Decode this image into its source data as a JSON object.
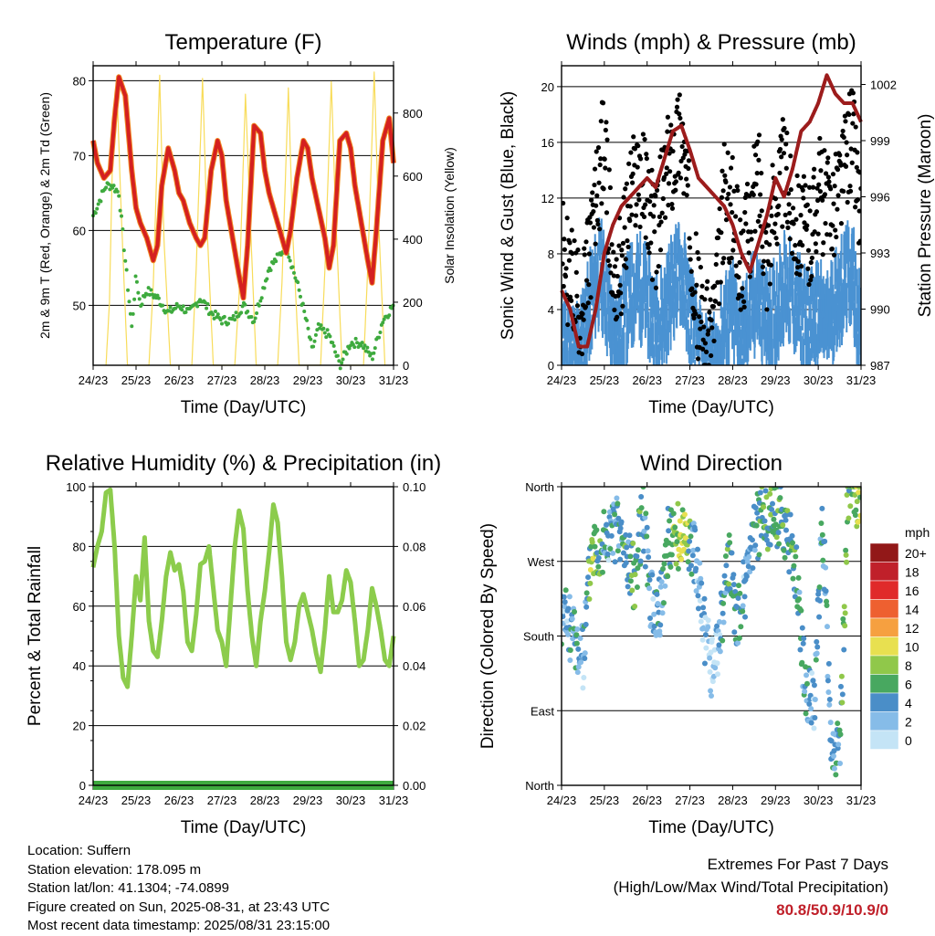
{
  "info": {
    "location": "Location: Suffern",
    "elevation": "Station elevation: 178.095 m",
    "latlon": "Station lat/lon: 41.1304; -74.0899",
    "created": "Figure created on Sun, 2025-08-31, at 23:43 UTC",
    "timestamp": "Most recent data timestamp: 2025/08/31 23:15:00"
  },
  "extremes": {
    "title": "Extremes For Past 7 Days",
    "subtitle": "(High/Low/Max Wind/Total Precipitation)",
    "values": "80.8/50.9/10.9/0"
  },
  "colors": {
    "temp_red": "#d42020",
    "temp_orange": "#f08a24",
    "dewpoint_green": "#3eaa3e",
    "solar_yellow": "#f8dc5a",
    "gust_black": "#000000",
    "wind_blue": "#4a92d2",
    "pressure_maroon": "#9c1c1c",
    "rh_green": "#8ccc4c",
    "precip_green": "#3eaa3e"
  },
  "chart_data": [
    {
      "type": "line",
      "title": "Temperature (F)",
      "xlabel": "Time (Day/UTC)",
      "ylabel": "2m & 9m T (Red, Orange) & 2m Td (Green)",
      "y2label": "Solar Insolation (Yellow)",
      "x_ticks": [
        "24/23",
        "25/23",
        "26/23",
        "27/23",
        "28/23",
        "29/23",
        "30/23",
        "31/23"
      ],
      "xlim": [
        0,
        7
      ],
      "ylim": [
        42,
        82
      ],
      "y_ticks": [
        50,
        60,
        70,
        80
      ],
      "y2lim": [
        0,
        950
      ],
      "y2_ticks": [
        0,
        200,
        400,
        600,
        800
      ],
      "grid": "horizontal",
      "series": [
        {
          "color": "#d42020",
          "x": [
            0,
            0.1,
            0.25,
            0.4,
            0.5,
            0.6,
            0.75,
            0.9,
            1.0,
            1.1,
            1.25,
            1.4,
            1.5,
            1.6,
            1.75,
            1.9,
            2.0,
            2.1,
            2.25,
            2.4,
            2.5,
            2.6,
            2.75,
            2.9,
            3.0,
            3.1,
            3.25,
            3.4,
            3.5,
            3.6,
            3.75,
            3.9,
            4.0,
            4.1,
            4.25,
            4.4,
            4.5,
            4.6,
            4.75,
            4.9,
            5.0,
            5.1,
            5.25,
            5.4,
            5.5,
            5.6,
            5.75,
            5.9,
            6.0,
            6.1,
            6.25,
            6.4,
            6.5,
            6.6,
            6.75,
            6.9,
            7.0
          ],
          "values": [
            72,
            69,
            67,
            68,
            75,
            80.5,
            78,
            68,
            63,
            61,
            59,
            56,
            58,
            66,
            71,
            68,
            65,
            64,
            61,
            59,
            58,
            59,
            68,
            72,
            70,
            64,
            59,
            54,
            51,
            58,
            74,
            73,
            68,
            65,
            62,
            59,
            57,
            60,
            67,
            72,
            71,
            67,
            63,
            59,
            55,
            58,
            72,
            73,
            71,
            66,
            61,
            56,
            53,
            60,
            72,
            75,
            69
          ]
        },
        {
          "color": "#f08a24",
          "x": [
            2.9,
            3.0,
            3.1,
            3.5,
            4.9,
            5.0,
            6.5,
            6.6,
            6.75,
            6.9
          ],
          "values": [
            70,
            71,
            66,
            53,
            70,
            71,
            55,
            61,
            71,
            73
          ]
        },
        {
          "color": "#3eaa3e",
          "x": [
            0,
            0.15,
            0.3,
            0.45,
            0.6,
            0.8,
            0.9,
            1.0,
            1.1,
            1.25,
            1.5,
            1.75,
            2.0,
            2.25,
            2.5,
            2.75,
            3.0,
            3.25,
            3.5,
            3.75,
            4.0,
            4.1,
            4.25,
            4.5,
            4.65,
            4.8,
            5.0,
            5.1,
            5.25,
            5.5,
            5.75,
            6.0,
            6.25,
            6.5,
            6.75,
            7.0
          ],
          "values": [
            62,
            64,
            66,
            66,
            65,
            53,
            47,
            54,
            50,
            52,
            51,
            49,
            50,
            49,
            51,
            49,
            48,
            48,
            50,
            48,
            53,
            55,
            56,
            58,
            55,
            52,
            47,
            44,
            47,
            46,
            42,
            45,
            45,
            43,
            48,
            50
          ]
        },
        {
          "color": "#f8dc5a",
          "axis": "y2",
          "x": [
            0.3,
            0.38,
            0.45,
            0.55,
            0.65,
            0.8,
            1.3,
            1.4,
            1.55,
            1.65,
            1.8,
            2.3,
            2.4,
            2.55,
            2.65,
            2.8,
            3.3,
            3.4,
            3.55,
            3.65,
            3.8,
            4.3,
            4.4,
            4.55,
            4.65,
            4.8,
            5.3,
            5.4,
            5.55,
            5.65,
            5.8,
            6.3,
            6.4,
            6.55,
            6.65,
            6.8
          ],
          "values": [
            0,
            200,
            650,
            900,
            500,
            0,
            0,
            250,
            920,
            400,
            0,
            0,
            300,
            910,
            450,
            0,
            0,
            220,
            860,
            500,
            0,
            0,
            260,
            880,
            420,
            0,
            0,
            300,
            900,
            480,
            0,
            0,
            310,
            930,
            460,
            0
          ]
        }
      ]
    },
    {
      "type": "scatter",
      "title": "Winds (mph) & Pressure (mb)",
      "xlabel": "Time (Day/UTC)",
      "ylabel": "Sonic Wind & Gust (Blue, Black)",
      "y2label": "Station Pressure (Maroon)",
      "x_ticks": [
        "24/23",
        "25/23",
        "26/23",
        "27/23",
        "28/23",
        "29/23",
        "30/23",
        "31/23"
      ],
      "xlim": [
        0,
        7
      ],
      "ylim": [
        0,
        21.5
      ],
      "y_ticks": [
        0,
        4,
        8,
        12,
        16,
        20
      ],
      "y2lim": [
        987,
        1003
      ],
      "y2_ticks": [
        987,
        990,
        993,
        996,
        999,
        1002
      ],
      "grid": "horizontal",
      "series": [
        {
          "name_hidden": "gust",
          "color": "#000000",
          "x": [
            0,
            0.5,
            0.9,
            1.0,
            1.2,
            1.4,
            1.6,
            1.8,
            2.0,
            2.2,
            2.4,
            2.6,
            2.8,
            3.0,
            3.2,
            3.4,
            3.6,
            3.8,
            4.0,
            4.2,
            4.4,
            4.6,
            4.8,
            5.0,
            5.2,
            5.4,
            5.6,
            5.8,
            6.0,
            6.2,
            6.4,
            6.6,
            6.8,
            7.0
          ],
          "values": [
            8,
            4,
            14,
            16,
            6,
            7,
            12,
            14,
            12,
            9,
            13,
            15,
            17,
            10,
            4,
            2,
            4,
            12,
            11,
            7,
            10,
            14,
            8,
            12,
            14,
            11,
            10,
            9,
            13,
            11,
            12,
            14,
            17,
            10
          ]
        },
        {
          "name_hidden": "wind",
          "color": "#4a92d2",
          "x": [
            0,
            0.3,
            0.5,
            0.7,
            0.9,
            1.0,
            1.2,
            1.4,
            1.6,
            1.8,
            2.0,
            2.2,
            2.4,
            2.6,
            2.8,
            3.0,
            3.2,
            3.4,
            3.6,
            3.8,
            4.0,
            4.2,
            4.4,
            4.6,
            4.8,
            5.0,
            5.2,
            5.4,
            5.6,
            5.8,
            6.0,
            6.2,
            6.4,
            6.6,
            6.8,
            7.0
          ],
          "values": [
            3,
            2,
            3,
            6,
            8,
            7,
            3,
            4,
            6,
            7,
            6,
            4,
            5,
            7,
            8,
            5,
            2,
            1,
            1,
            4,
            5,
            3,
            5,
            6,
            4,
            5,
            7,
            6,
            5,
            4,
            5,
            4,
            6,
            7,
            8,
            3
          ]
        },
        {
          "name_hidden": "pressure",
          "color": "#9c1c1c",
          "axis": "y2",
          "x": [
            0,
            0.2,
            0.4,
            0.6,
            0.8,
            1.0,
            1.2,
            1.4,
            1.6,
            1.8,
            2.0,
            2.2,
            2.4,
            2.6,
            2.8,
            3.0,
            3.2,
            3.4,
            3.6,
            3.8,
            4.0,
            4.2,
            4.4,
            4.6,
            4.8,
            5.0,
            5.2,
            5.4,
            5.6,
            5.8,
            6.0,
            6.2,
            6.4,
            6.6,
            6.8,
            7.0
          ],
          "values": [
            991,
            990,
            988,
            988,
            990,
            993,
            994.5,
            995.5,
            996,
            996.5,
            997,
            996.5,
            998,
            999.5,
            999.8,
            998.5,
            997,
            996.5,
            996,
            995.5,
            994.5,
            993,
            992,
            993.5,
            995,
            997,
            996,
            997.5,
            999.5,
            1000,
            1001,
            1002.5,
            1001.5,
            1001,
            1001,
            1000
          ]
        }
      ]
    },
    {
      "type": "line",
      "title": "Relative Humidity (%) & Precipitation (in)",
      "xlabel": "Time (Day/UTC)",
      "ylabel": "Percent & Total Rainfall",
      "x_ticks": [
        "24/23",
        "25/23",
        "26/23",
        "27/23",
        "28/23",
        "29/23",
        "30/23",
        "31/23"
      ],
      "xlim": [
        0,
        7
      ],
      "ylim": [
        0,
        100
      ],
      "y_ticks": [
        0,
        20,
        40,
        60,
        80,
        100
      ],
      "y2lim": [
        0,
        0.1
      ],
      "y2_ticks": [
        "0.00",
        "0.02",
        "0.04",
        "0.06",
        "0.08",
        "0.10"
      ],
      "grid": "horizontal",
      "series": [
        {
          "color": "#8ccc4c",
          "x": [
            0,
            0.1,
            0.2,
            0.3,
            0.4,
            0.5,
            0.6,
            0.7,
            0.8,
            0.9,
            1.0,
            1.1,
            1.2,
            1.3,
            1.4,
            1.5,
            1.6,
            1.7,
            1.8,
            1.9,
            2.0,
            2.1,
            2.2,
            2.3,
            2.4,
            2.5,
            2.6,
            2.7,
            2.8,
            2.9,
            3.0,
            3.1,
            3.2,
            3.3,
            3.4,
            3.5,
            3.6,
            3.7,
            3.8,
            3.9,
            4.0,
            4.1,
            4.2,
            4.3,
            4.4,
            4.5,
            4.6,
            4.7,
            4.8,
            4.9,
            5.0,
            5.1,
            5.2,
            5.3,
            5.4,
            5.5,
            5.6,
            5.7,
            5.8,
            5.9,
            6.0,
            6.1,
            6.2,
            6.3,
            6.4,
            6.5,
            6.6,
            6.7,
            6.8,
            6.9,
            7.0
          ],
          "values": [
            73,
            80,
            85,
            98,
            99,
            80,
            50,
            36,
            33,
            50,
            70,
            62,
            83,
            55,
            45,
            43,
            55,
            70,
            78,
            72,
            74,
            65,
            48,
            45,
            57,
            74,
            75,
            80,
            66,
            52,
            48,
            40,
            60,
            80,
            92,
            86,
            65,
            50,
            40,
            55,
            65,
            78,
            94,
            88,
            70,
            48,
            42,
            48,
            60,
            64,
            58,
            52,
            44,
            38,
            52,
            70,
            58,
            58,
            62,
            72,
            68,
            55,
            40,
            42,
            52,
            66,
            60,
            52,
            42,
            40,
            50
          ]
        },
        {
          "color": "#3eaa3e",
          "axis": "y2",
          "x": [
            0,
            7
          ],
          "values": [
            0,
            0
          ]
        }
      ]
    },
    {
      "type": "scatter",
      "title": "Wind Direction",
      "xlabel": "Time (Day/UTC)",
      "ylabel": "Direction (Colored By Speed)",
      "x_ticks": [
        "24/23",
        "25/23",
        "26/23",
        "27/23",
        "28/23",
        "29/23",
        "30/23",
        "31/23"
      ],
      "xlim": [
        0,
        7
      ],
      "ylim": [
        0,
        360
      ],
      "y_ticks": [
        "North",
        "East",
        "South",
        "West",
        "North"
      ],
      "grid": "horizontal",
      "legend": {
        "title": "mph",
        "position": "right",
        "labels": [
          "20+",
          "18",
          "16",
          "14",
          "12",
          "10",
          "8",
          "6",
          "4",
          "2",
          "0"
        ],
        "colors": [
          "#921818",
          "#c0202a",
          "#e02a2a",
          "#ee6030",
          "#f6a040",
          "#e8e050",
          "#90c84a",
          "#48a860",
          "#4a8ec8",
          "#86bce8",
          "#c4e4f6"
        ]
      },
      "x": [
        0.1,
        0.3,
        0.5,
        0.7,
        0.9,
        1.1,
        1.3,
        1.5,
        1.7,
        1.9,
        2.1,
        2.3,
        2.5,
        2.7,
        2.9,
        3.1,
        3.3,
        3.5,
        3.7,
        3.9,
        4.1,
        4.3,
        4.5,
        4.7,
        4.9,
        5.1,
        5.3,
        5.5,
        5.7,
        5.9,
        6.1,
        6.3,
        6.5,
        6.7,
        6.9
      ],
      "values": [
        200,
        180,
        150,
        290,
        290,
        300,
        310,
        280,
        250,
        330,
        220,
        210,
        300,
        300,
        305,
        280,
        200,
        140,
        180,
        270,
        200,
        240,
        300,
        330,
        320,
        330,
        300,
        250,
        120,
        90,
        320,
        60,
        30,
        360,
        350
      ],
      "speeds": [
        3,
        4,
        2,
        8,
        6,
        3,
        4,
        5,
        6,
        5,
        3,
        4,
        6,
        8,
        9,
        3,
        2,
        1,
        2,
        6,
        5,
        3,
        4,
        6,
        5,
        6,
        6,
        5,
        4,
        3,
        4,
        4,
        5,
        7,
        8
      ]
    }
  ]
}
